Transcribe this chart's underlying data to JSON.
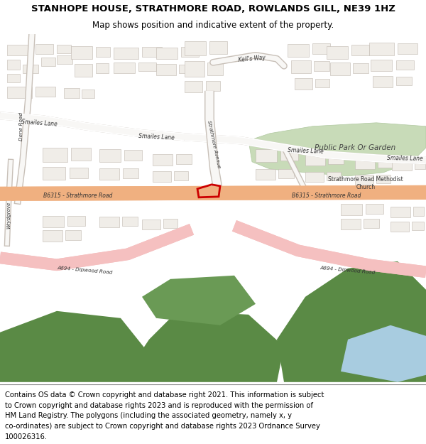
{
  "title_line1": "STANHOPE HOUSE, STRATHMORE ROAD, ROWLANDS GILL, NE39 1HZ",
  "title_line2": "Map shows position and indicative extent of the property.",
  "footer_lines": [
    "Contains OS data © Crown copyright and database right 2021. This information is subject",
    "to Crown copyright and database rights 2023 and is reproduced with the permission of",
    "HM Land Registry. The polygons (including the associated geometry, namely x, y",
    "co-ordinates) are subject to Crown copyright and database rights 2023 Ordnance Survey",
    "100026316."
  ],
  "title_fontsize": 9.5,
  "subtitle_fontsize": 8.5,
  "footer_fontsize": 7.2,
  "map_bg": "#f8f7f5",
  "building_fill": "#e8e4de",
  "building_edge": "#c8c0b8",
  "road_b_color": "#f0b080",
  "road_a_color": "#f5c0c0",
  "road_minor_color": "#ffffff",
  "green_park_color": "#c8dbb8",
  "dark_green_color": "#5a8a45",
  "water_color": "#a8cce0",
  "plot_edge_color": "#cc0000",
  "plot_fill_color": "none"
}
